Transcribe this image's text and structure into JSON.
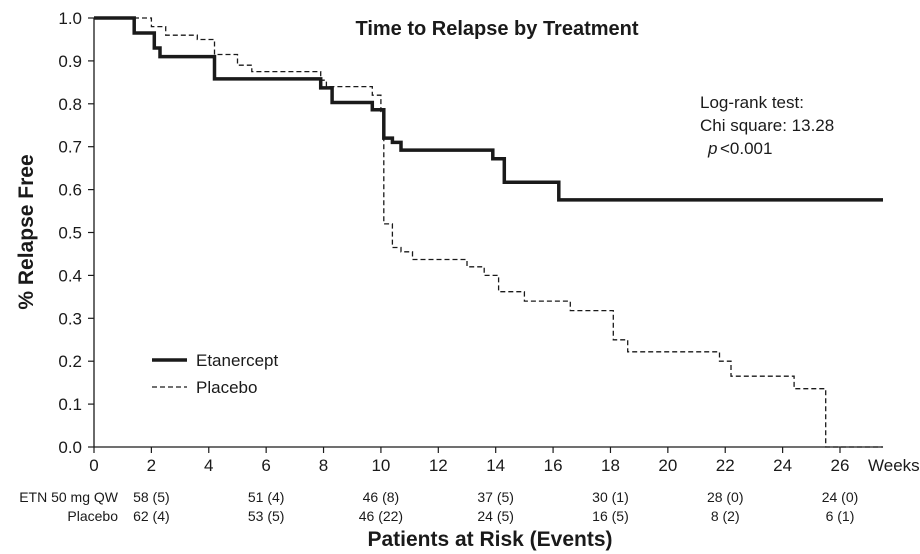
{
  "chart_data": {
    "type": "line",
    "title": "Time to Relapse by Treatment",
    "ylabel": "% Relapse Free",
    "xlabel": "Patients at Risk (Events)",
    "x_unit_label": "Weeks",
    "xlim": [
      0,
      27.5
    ],
    "ylim": [
      0,
      1.0
    ],
    "xticks": [
      "0",
      "2",
      "4",
      "6",
      "8",
      "10",
      "12",
      "14",
      "16",
      "18",
      "20",
      "22",
      "24",
      "26"
    ],
    "yticks": [
      "0.0",
      "0.1",
      "0.2",
      "0.3",
      "0.4",
      "0.5",
      "0.6",
      "0.7",
      "0.8",
      "0.9",
      "1.0"
    ],
    "grid": false,
    "legend_position": "bottom-left",
    "annotation": {
      "line1": "Log-rank test:",
      "line2": "Chi square: 13.28",
      "p_symbol": "p",
      "p_value": "<0.001"
    },
    "series": [
      {
        "name": "Etanercept",
        "style": "solid",
        "steps": [
          [
            0,
            1.0
          ],
          [
            1.4,
            0.965
          ],
          [
            2.1,
            0.93
          ],
          [
            2.3,
            0.91
          ],
          [
            4.2,
            0.858
          ],
          [
            7.9,
            0.837
          ],
          [
            8.3,
            0.803
          ],
          [
            9.7,
            0.786
          ],
          [
            10.1,
            0.72
          ],
          [
            10.4,
            0.71
          ],
          [
            10.7,
            0.692
          ],
          [
            13.9,
            0.672
          ],
          [
            14.3,
            0.617
          ],
          [
            16.2,
            0.576
          ],
          [
            27.5,
            0.576
          ]
        ]
      },
      {
        "name": "Placebo",
        "style": "dashed",
        "steps": [
          [
            0,
            1.0
          ],
          [
            2.0,
            0.98
          ],
          [
            2.5,
            0.96
          ],
          [
            3.6,
            0.95
          ],
          [
            4.2,
            0.915
          ],
          [
            5.0,
            0.89
          ],
          [
            5.5,
            0.875
          ],
          [
            7.9,
            0.855
          ],
          [
            8.1,
            0.84
          ],
          [
            9.7,
            0.82
          ],
          [
            10.0,
            0.78
          ],
          [
            10.1,
            0.52
          ],
          [
            10.4,
            0.465
          ],
          [
            10.7,
            0.455
          ],
          [
            11.1,
            0.437
          ],
          [
            13.0,
            0.42
          ],
          [
            13.6,
            0.4
          ],
          [
            14.1,
            0.362
          ],
          [
            15.0,
            0.34
          ],
          [
            16.6,
            0.318
          ],
          [
            18.1,
            0.25
          ],
          [
            18.6,
            0.222
          ],
          [
            21.8,
            0.2
          ],
          [
            22.2,
            0.165
          ],
          [
            24.4,
            0.136
          ],
          [
            25.5,
            0.0
          ],
          [
            27.5,
            0.0
          ]
        ]
      }
    ],
    "at_risk": {
      "rows": [
        {
          "label": "ETN 50 mg QW",
          "values": [
            "58 (5)",
            "51 (4)",
            "46 (8)",
            "37 (5)",
            "30 (1)",
            "28 (0)",
            "24 (0)"
          ]
        },
        {
          "label": "Placebo",
          "values": [
            "62 (4)",
            "53 (5)",
            "46 (22)",
            "24 (5)",
            "16 (5)",
            "8 (2)",
            "6 (1)"
          ]
        }
      ],
      "weeks": [
        2,
        6,
        10,
        14,
        18,
        22,
        26
      ]
    }
  }
}
